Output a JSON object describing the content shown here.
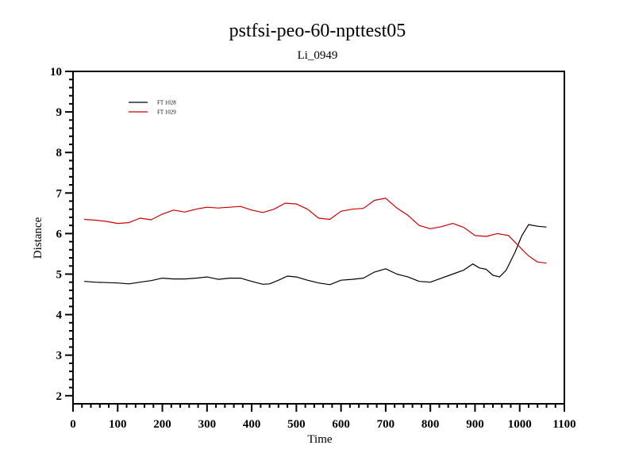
{
  "chart_data": {
    "type": "line",
    "title": "pstfsi-peo-60-npttest05",
    "subtitle": "Li_0949",
    "xlabel": "Time",
    "ylabel": "Distance",
    "xlim": [
      0,
      1100
    ],
    "ylim": [
      1.8,
      10
    ],
    "xticks": [
      "0",
      "100",
      "200",
      "300",
      "400",
      "500",
      "600",
      "700",
      "800",
      "900",
      "1000",
      "1100"
    ],
    "yticks": [
      "2",
      "3",
      "4",
      "5",
      "6",
      "7",
      "8",
      "9",
      "10"
    ],
    "grid": false,
    "legend_position": "top-left",
    "series": [
      {
        "name": "FT 1028",
        "color": "#000000",
        "x": [
          25,
          50,
          75,
          100,
          125,
          150,
          175,
          200,
          225,
          250,
          275,
          300,
          325,
          350,
          375,
          400,
          425,
          440,
          460,
          480,
          500,
          525,
          550,
          575,
          600,
          625,
          650,
          675,
          700,
          725,
          750,
          775,
          800,
          825,
          850,
          875,
          895,
          910,
          925,
          940,
          955,
          970,
          990,
          1005,
          1020,
          1040,
          1060
        ],
        "y": [
          4.82,
          4.8,
          4.79,
          4.78,
          4.76,
          4.8,
          4.84,
          4.9,
          4.88,
          4.88,
          4.9,
          4.93,
          4.87,
          4.9,
          4.9,
          4.82,
          4.75,
          4.76,
          4.85,
          4.95,
          4.93,
          4.85,
          4.78,
          4.74,
          4.85,
          4.87,
          4.9,
          5.05,
          5.13,
          5.0,
          4.93,
          4.82,
          4.8,
          4.9,
          5.0,
          5.1,
          5.25,
          5.15,
          5.12,
          4.97,
          4.93,
          5.1,
          5.55,
          5.95,
          6.22,
          6.18,
          6.16
        ]
      },
      {
        "name": "FT 1029",
        "color": "#cc0000",
        "x": [
          25,
          50,
          75,
          100,
          125,
          150,
          175,
          200,
          225,
          250,
          275,
          300,
          325,
          350,
          375,
          400,
          425,
          450,
          475,
          500,
          525,
          550,
          575,
          600,
          625,
          650,
          675,
          700,
          725,
          750,
          775,
          800,
          825,
          850,
          875,
          900,
          925,
          950,
          975,
          1000,
          1020,
          1040,
          1060
        ],
        "y": [
          6.35,
          6.33,
          6.3,
          6.25,
          6.27,
          6.38,
          6.34,
          6.48,
          6.58,
          6.53,
          6.6,
          6.65,
          6.63,
          6.65,
          6.67,
          6.58,
          6.52,
          6.6,
          6.75,
          6.73,
          6.6,
          6.38,
          6.35,
          6.55,
          6.6,
          6.62,
          6.82,
          6.87,
          6.63,
          6.45,
          6.2,
          6.12,
          6.17,
          6.25,
          6.15,
          5.95,
          5.93,
          6.0,
          5.95,
          5.67,
          5.45,
          5.3,
          5.27
        ]
      }
    ]
  }
}
